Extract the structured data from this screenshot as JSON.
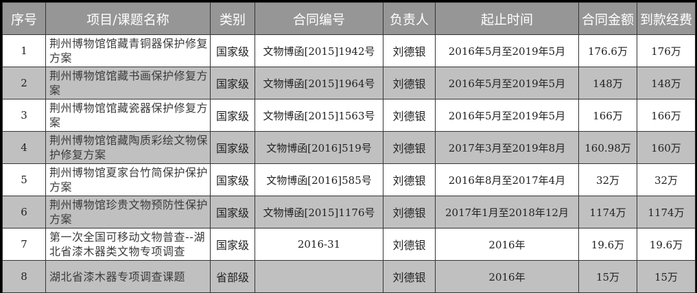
{
  "headers": [
    "序号",
    "项目/课题名称",
    "类别",
    "合同编号",
    "负责人",
    "起止时间",
    "合同金额",
    "到款经费"
  ],
  "rows": [
    {
      "no": "1",
      "name": "荆州博物馆馆藏青铜器保护修复方案",
      "category": "国家级",
      "contract": "文物博函[2015]1942号",
      "person": "刘德银",
      "period": "2016年5月至2019年5月",
      "amount": "176.6万",
      "received": "176万"
    },
    {
      "no": "2",
      "name": "荆州博物馆馆藏书画保护修复方案",
      "category": "国家级",
      "contract": "文物博函[2015]1964号",
      "person": "刘德银",
      "period": "2016年5月至2019年5月",
      "amount": "148万",
      "received": "148万"
    },
    {
      "no": "3",
      "name": "荆州博物馆馆藏瓷器保护修复方案",
      "category": "国家级",
      "contract": "文物博函[2015]1563号",
      "person": "刘德银",
      "period": "2016年5月至2019年5月",
      "amount": "166万",
      "received": "166万"
    },
    {
      "no": "4",
      "name": "荆州博物馆馆藏陶质彩绘文物保护修复方案",
      "category": "国家级",
      "contract": "文物博函[2016]519号",
      "person": "刘德银",
      "period": "2017年3月至2019年8月",
      "amount": "160.98万",
      "received": "160万"
    },
    {
      "no": "5",
      "name": "荆州博物馆夏家台竹简保护保护方案",
      "category": "国家级",
      "contract": "文物博函[2016]585号",
      "person": "刘德银",
      "period": "2016年8月至2017年4月",
      "amount": "32万",
      "received": "32万"
    },
    {
      "no": "6",
      "name": "荆州博物馆珍贵文物预防性保护方案",
      "category": "国家级",
      "contract": "文物博函[2015]1176号",
      "person": "刘德银",
      "period": "2017年1月至2018年12月",
      "amount": "1174万",
      "received": "1174万"
    },
    {
      "no": "7",
      "name": "第一次全国可移动文物普查--湖北省漆木器类文物专项调查",
      "category": "国家级",
      "contract": "2016-31",
      "person": "刘德银",
      "period": "2016年",
      "amount": "19.6万",
      "received": "19.6万"
    },
    {
      "no": "8",
      "name": "湖北省漆木器专项调查课题",
      "category": "省部级",
      "contract": "",
      "person": "刘德银",
      "period": "2016年",
      "amount": "15万",
      "received": "15万"
    }
  ]
}
